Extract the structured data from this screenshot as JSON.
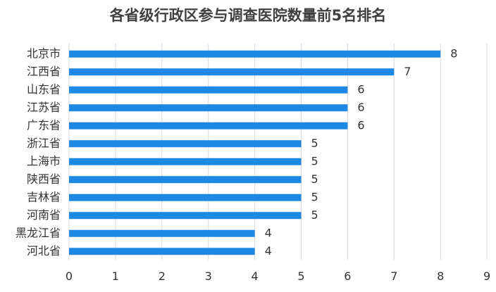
{
  "chart_data": {
    "type": "bar",
    "orientation": "horizontal",
    "title": "各省级行政区参与调查医院数量前5名排名",
    "categories": [
      "北京市",
      "江西省",
      "山东省",
      "江苏省",
      "广东省",
      "浙江省",
      "上海市",
      "陕西省",
      "吉林省",
      "河南省",
      "黑龙江省",
      "河北省"
    ],
    "values": [
      8,
      7,
      6,
      6,
      6,
      5,
      5,
      5,
      5,
      5,
      4,
      4
    ],
    "xlim": [
      0,
      9
    ],
    "xticks": [
      "0",
      "1",
      "2",
      "3",
      "4",
      "5",
      "6",
      "7",
      "8",
      "9"
    ],
    "xlabel": "",
    "ylabel": "",
    "grid": "vertical",
    "legend": "none",
    "bar_color": "#1e88e5"
  }
}
